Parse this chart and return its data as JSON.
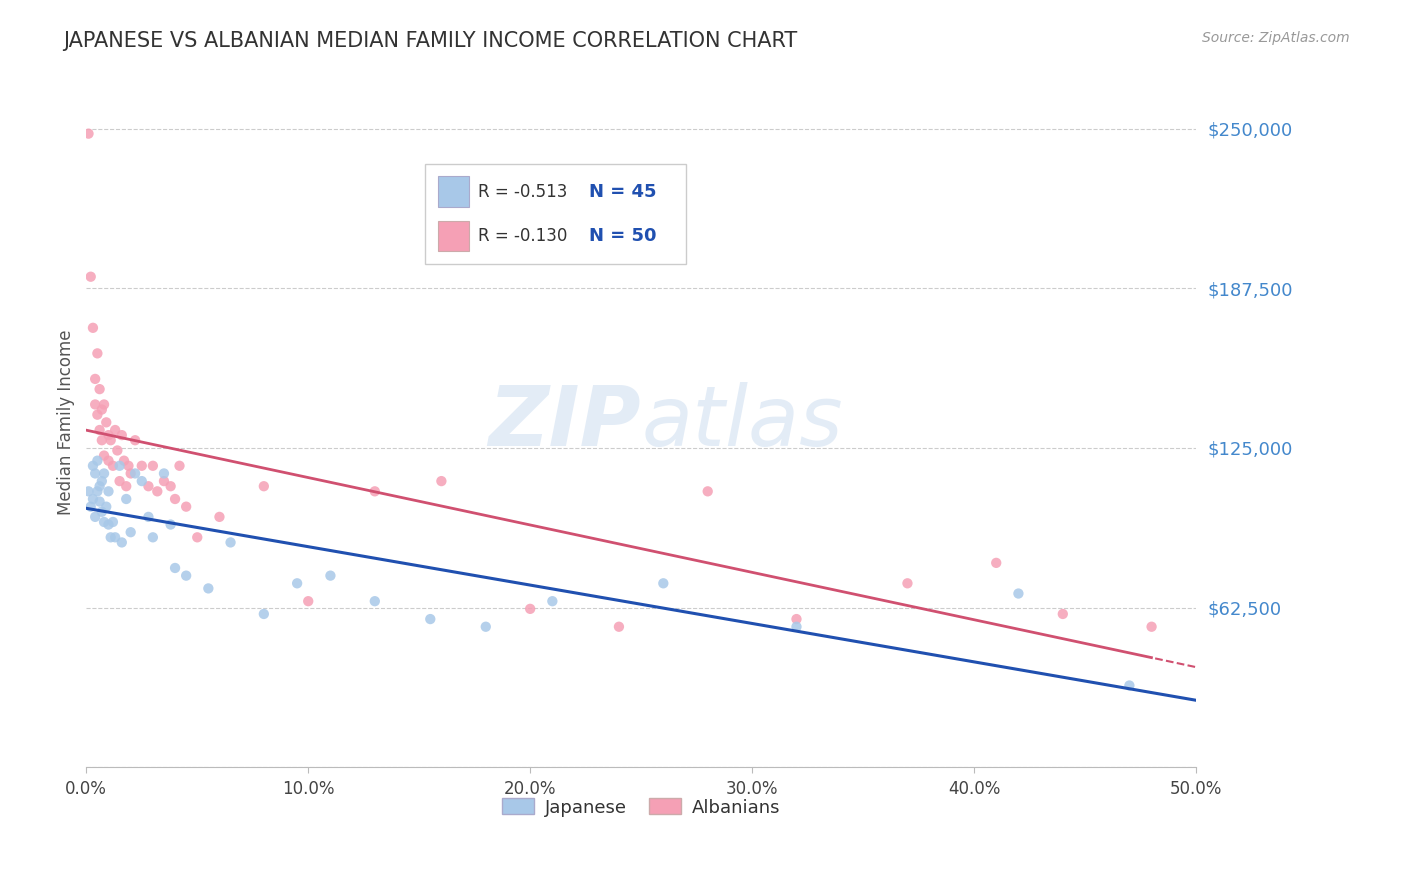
{
  "title": "JAPANESE VS ALBANIAN MEDIAN FAMILY INCOME CORRELATION CHART",
  "source": "Source: ZipAtlas.com",
  "ylabel": "Median Family Income",
  "yticks": [
    0,
    62500,
    125000,
    187500,
    250000
  ],
  "ytick_labels": [
    "",
    "$62,500",
    "$125,000",
    "$187,500",
    "$250,000"
  ],
  "xlim": [
    0.0,
    0.5
  ],
  "ylim": [
    0,
    270000
  ],
  "japanese_color": "#a8c8e8",
  "albanian_color": "#f5a0b5",
  "japanese_line_color": "#2050b0",
  "albanian_line_color": "#d05070",
  "watermark_zip": "ZIP",
  "watermark_atlas": "atlas",
  "legend_R1": "R = -0.513",
  "legend_N1": "N = 45",
  "legend_R2": "R = -0.130",
  "legend_N2": "N = 50",
  "legend_label1": "Japanese",
  "legend_label2": "Albanians",
  "japanese_x": [
    0.001,
    0.002,
    0.003,
    0.003,
    0.004,
    0.004,
    0.005,
    0.005,
    0.006,
    0.006,
    0.007,
    0.007,
    0.008,
    0.008,
    0.009,
    0.01,
    0.01,
    0.011,
    0.012,
    0.013,
    0.015,
    0.016,
    0.018,
    0.02,
    0.022,
    0.025,
    0.028,
    0.03,
    0.035,
    0.038,
    0.04,
    0.045,
    0.055,
    0.065,
    0.08,
    0.095,
    0.11,
    0.13,
    0.155,
    0.18,
    0.21,
    0.26,
    0.32,
    0.42,
    0.47
  ],
  "japanese_y": [
    108000,
    102000,
    118000,
    105000,
    115000,
    98000,
    120000,
    108000,
    110000,
    104000,
    112000,
    100000,
    115000,
    96000,
    102000,
    108000,
    95000,
    90000,
    96000,
    90000,
    118000,
    88000,
    105000,
    92000,
    115000,
    112000,
    98000,
    90000,
    115000,
    95000,
    78000,
    75000,
    70000,
    88000,
    60000,
    72000,
    75000,
    65000,
    58000,
    55000,
    65000,
    72000,
    55000,
    68000,
    32000
  ],
  "albanian_x": [
    0.001,
    0.002,
    0.003,
    0.004,
    0.004,
    0.005,
    0.005,
    0.006,
    0.006,
    0.007,
    0.007,
    0.008,
    0.008,
    0.009,
    0.01,
    0.01,
    0.011,
    0.012,
    0.013,
    0.014,
    0.015,
    0.016,
    0.017,
    0.018,
    0.019,
    0.02,
    0.022,
    0.025,
    0.028,
    0.03,
    0.032,
    0.035,
    0.038,
    0.04,
    0.042,
    0.045,
    0.05,
    0.06,
    0.08,
    0.1,
    0.13,
    0.16,
    0.2,
    0.24,
    0.28,
    0.32,
    0.37,
    0.41,
    0.44,
    0.48
  ],
  "albanian_y": [
    248000,
    192000,
    172000,
    152000,
    142000,
    162000,
    138000,
    148000,
    132000,
    140000,
    128000,
    142000,
    122000,
    135000,
    130000,
    120000,
    128000,
    118000,
    132000,
    124000,
    112000,
    130000,
    120000,
    110000,
    118000,
    115000,
    128000,
    118000,
    110000,
    118000,
    108000,
    112000,
    110000,
    105000,
    118000,
    102000,
    90000,
    98000,
    110000,
    65000,
    108000,
    112000,
    62000,
    55000,
    108000,
    58000,
    72000,
    80000,
    60000,
    55000
  ],
  "grid_color": "#cccccc",
  "title_color": "#333333",
  "axis_label_color": "#555555",
  "ytick_color": "#4488cc",
  "xtick_color": "#444444",
  "background_color": "#ffffff"
}
